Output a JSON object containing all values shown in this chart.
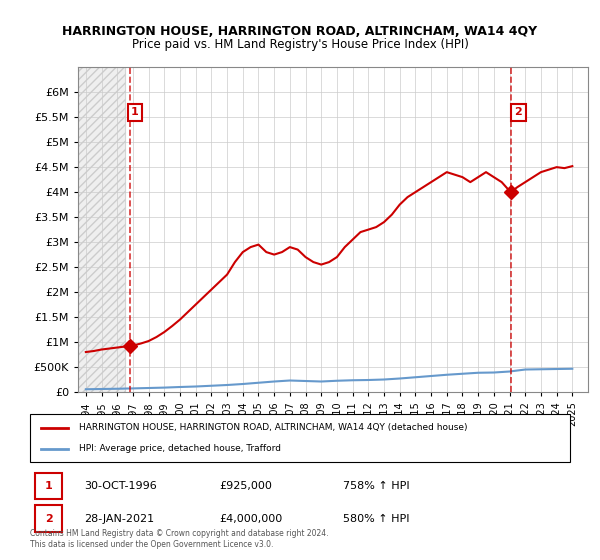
{
  "title": "HARRINGTON HOUSE, HARRINGTON ROAD, ALTRINCHAM, WA14 4QY",
  "subtitle": "Price paid vs. HM Land Registry's House Price Index (HPI)",
  "legend_line1": "HARRINGTON HOUSE, HARRINGTON ROAD, ALTRINCHAM, WA14 4QY (detached house)",
  "legend_line2": "HPI: Average price, detached house, Trafford",
  "table_row1": [
    "1",
    "30-OCT-1996",
    "£925,000",
    "758% ↑ HPI"
  ],
  "table_row2": [
    "2",
    "28-JAN-2021",
    "£4,000,000",
    "580% ↑ HPI"
  ],
  "footnote": "Contains HM Land Registry data © Crown copyright and database right 2024.\nThis data is licensed under the Open Government Licence v3.0.",
  "price_color": "#cc0000",
  "hpi_color": "#6699cc",
  "background_hatch_color": "#e8e8e8",
  "grid_color": "#cccccc",
  "annotation_box_color": "#cc0000",
  "annotation_bg": "#ffffff",
  "ylim": [
    0,
    6500000
  ],
  "yticks": [
    0,
    500000,
    1000000,
    1500000,
    2000000,
    2500000,
    3000000,
    3500000,
    4000000,
    4500000,
    5000000,
    5500000,
    6000000
  ],
  "xlim_start": 1993.5,
  "xlim_end": 2026.0,
  "xtick_years": [
    1994,
    1995,
    1996,
    1997,
    1998,
    1999,
    2000,
    2001,
    2002,
    2003,
    2004,
    2005,
    2006,
    2007,
    2008,
    2009,
    2010,
    2011,
    2012,
    2013,
    2014,
    2015,
    2016,
    2017,
    2018,
    2019,
    2020,
    2021,
    2022,
    2023,
    2024,
    2025
  ],
  "purchase1_year": 1996.83,
  "purchase1_price": 925000,
  "purchase2_year": 2021.07,
  "purchase2_price": 4000000,
  "hpi_years": [
    1994,
    1995,
    1996,
    1997,
    1998,
    1999,
    2000,
    2001,
    2002,
    2003,
    2004,
    2005,
    2006,
    2007,
    2008,
    2009,
    2010,
    2011,
    2012,
    2013,
    2014,
    2015,
    2016,
    2017,
    2018,
    2019,
    2020,
    2021,
    2022,
    2023,
    2024,
    2025
  ],
  "hpi_values": [
    55000,
    60000,
    65000,
    72000,
    80000,
    88000,
    100000,
    110000,
    125000,
    140000,
    160000,
    185000,
    210000,
    230000,
    220000,
    210000,
    225000,
    235000,
    240000,
    250000,
    270000,
    295000,
    320000,
    345000,
    365000,
    385000,
    390000,
    410000,
    450000,
    455000,
    460000,
    465000
  ],
  "price_years": [
    1994.0,
    1994.5,
    1995.0,
    1995.5,
    1996.0,
    1996.5,
    1996.83,
    1997.0,
    1997.5,
    1998.0,
    1998.5,
    1999.0,
    1999.5,
    2000.0,
    2000.5,
    2001.0,
    2001.5,
    2002.0,
    2002.5,
    2003.0,
    2003.5,
    2004.0,
    2004.5,
    2005.0,
    2005.5,
    2006.0,
    2006.5,
    2007.0,
    2007.5,
    2008.0,
    2008.5,
    2009.0,
    2009.5,
    2010.0,
    2010.5,
    2011.0,
    2011.5,
    2012.0,
    2012.5,
    2013.0,
    2013.5,
    2014.0,
    2014.5,
    2015.0,
    2015.5,
    2016.0,
    2016.5,
    2017.0,
    2017.5,
    2018.0,
    2018.5,
    2019.0,
    2019.5,
    2020.0,
    2020.5,
    2021.07,
    2021.5,
    2022.0,
    2022.5,
    2023.0,
    2023.5,
    2024.0,
    2024.5,
    2025.0
  ],
  "price_values": [
    800000,
    820000,
    850000,
    870000,
    890000,
    910000,
    925000,
    930000,
    970000,
    1020000,
    1100000,
    1200000,
    1320000,
    1450000,
    1600000,
    1750000,
    1900000,
    2050000,
    2200000,
    2350000,
    2600000,
    2800000,
    2900000,
    2950000,
    2800000,
    2750000,
    2800000,
    2900000,
    2850000,
    2700000,
    2600000,
    2550000,
    2600000,
    2700000,
    2900000,
    3050000,
    3200000,
    3250000,
    3300000,
    3400000,
    3550000,
    3750000,
    3900000,
    4000000,
    4100000,
    4200000,
    4300000,
    4400000,
    4350000,
    4300000,
    4200000,
    4300000,
    4400000,
    4300000,
    4200000,
    4000000,
    4100000,
    4200000,
    4300000,
    4400000,
    4450000,
    4500000,
    4480000,
    4520000
  ]
}
